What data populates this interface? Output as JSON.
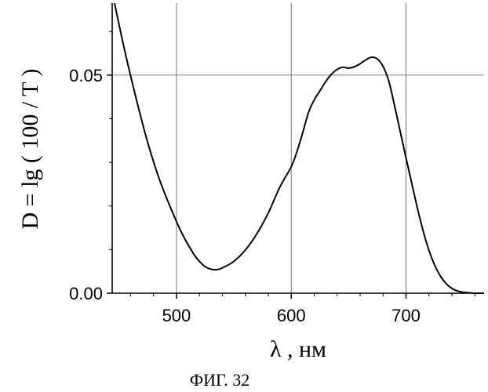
{
  "chart_data": {
    "type": "line",
    "ylabel": "D = lg ( 100 / T )",
    "xlabel": "λ , нм",
    "caption": "ФИГ. 32",
    "xlim": [
      444,
      768
    ],
    "ylim": [
      0.0,
      0.0665
    ],
    "x_ticks": [
      {
        "value": 500,
        "label": "500"
      },
      {
        "value": 600,
        "label": "600"
      },
      {
        "value": 700,
        "label": "700"
      }
    ],
    "y_ticks": [
      {
        "value": 0.0,
        "label": "0.00"
      },
      {
        "value": 0.05,
        "label": "0.05"
      }
    ],
    "grid": true,
    "series": [
      {
        "color": "#000000",
        "x": [
          446,
          455,
          465,
          475,
          485,
          495,
          505,
          515,
          520,
          525,
          530,
          535,
          540,
          550,
          560,
          570,
          580,
          590,
          600,
          605,
          610,
          615,
          620,
          625,
          630,
          635,
          640,
          645,
          650,
          655,
          660,
          665,
          670,
          675,
          680,
          685,
          690,
          695,
          700,
          705,
          710,
          715,
          720,
          725,
          730,
          735,
          740,
          745,
          750,
          755,
          760,
          765,
          768
        ],
        "y": [
          0.0665,
          0.0555,
          0.0445,
          0.0345,
          0.0262,
          0.0195,
          0.0136,
          0.009,
          0.0073,
          0.0061,
          0.0055,
          0.0054,
          0.0058,
          0.0073,
          0.0099,
          0.0136,
          0.0184,
          0.0243,
          0.029,
          0.0325,
          0.0368,
          0.0414,
          0.0443,
          0.0464,
          0.0485,
          0.0502,
          0.0513,
          0.0518,
          0.0516,
          0.0519,
          0.0526,
          0.0535,
          0.0541,
          0.0537,
          0.052,
          0.0486,
          0.043,
          0.037,
          0.031,
          0.0252,
          0.0194,
          0.0142,
          0.0098,
          0.0064,
          0.0039,
          0.0022,
          0.0011,
          0.0005,
          0.0002,
          0.0001,
          0.0,
          0.0,
          0.0
        ]
      }
    ]
  }
}
